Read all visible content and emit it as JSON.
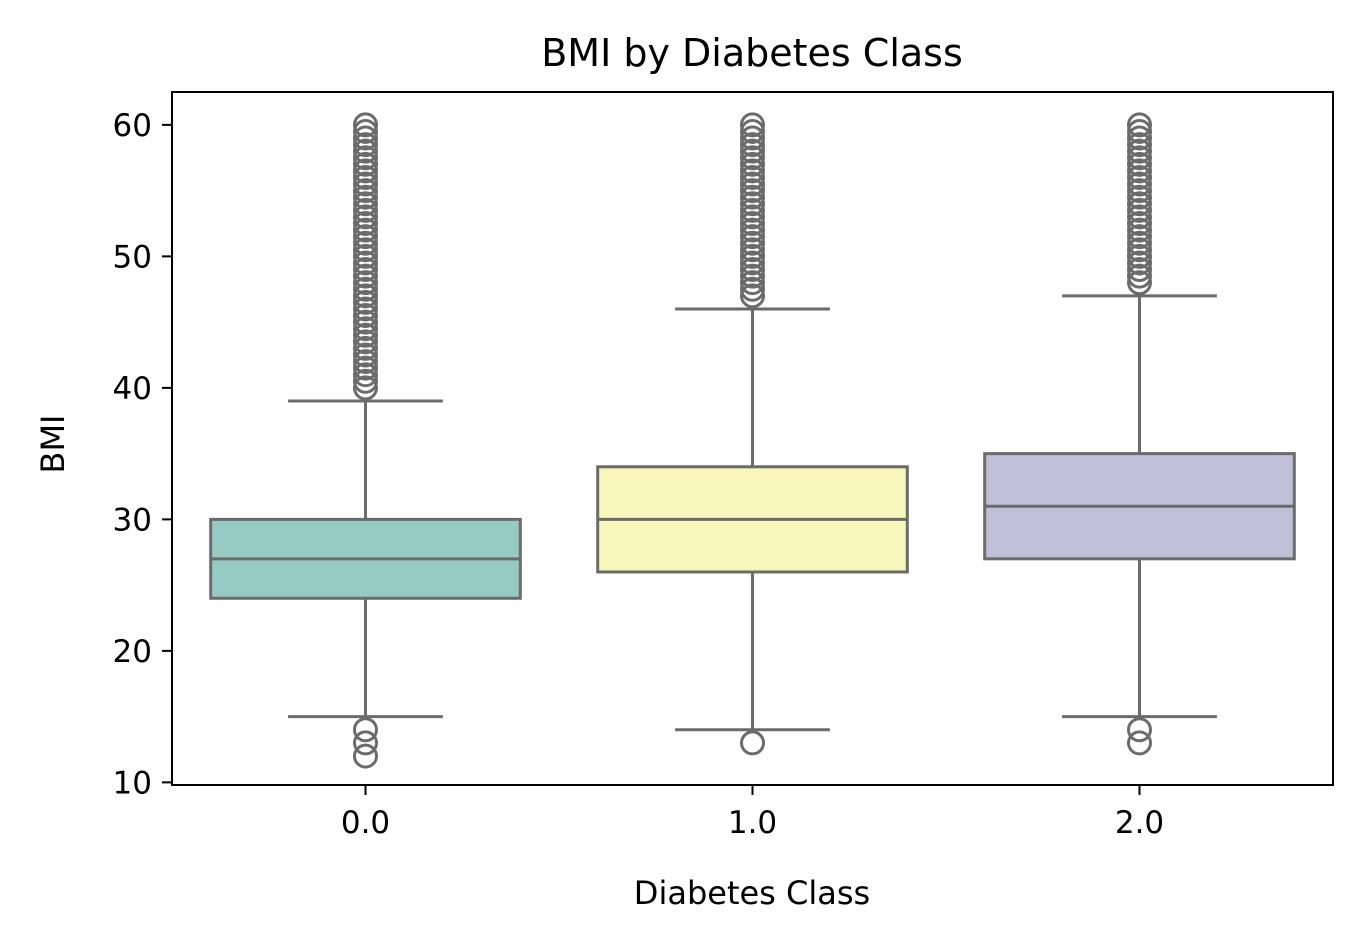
{
  "chart_data": {
    "type": "box",
    "title": "BMI by Diabetes Class",
    "xlabel": "Diabetes Class",
    "ylabel": "BMI",
    "categories": [
      "0.0",
      "1.0",
      "2.0"
    ],
    "ylim": [
      9.8,
      62.5
    ],
    "yticks": [
      10,
      20,
      30,
      40,
      50,
      60
    ],
    "grid": false,
    "legend": "none",
    "line_color": "#6b6b6b",
    "boxes": [
      {
        "category": "0.0",
        "color": "#96cbc3",
        "whisker_low": 15,
        "q1": 24,
        "median": 27,
        "q3": 30,
        "whisker_high": 39,
        "outliers": [
          12,
          13,
          14,
          40,
          40.5,
          41,
          41.5,
          42,
          42.5,
          43,
          43.5,
          44,
          44.5,
          45,
          45.5,
          46,
          46.5,
          47,
          47.5,
          48,
          48.5,
          49,
          49.5,
          50,
          50.5,
          51,
          51.5,
          52,
          52.5,
          53,
          53.5,
          54,
          54.5,
          55,
          55.5,
          56,
          56.5,
          57,
          57.5,
          58,
          58.5,
          59,
          59.5,
          60
        ]
      },
      {
        "category": "1.0",
        "color": "#f7f7bb",
        "whisker_low": 14,
        "q1": 26,
        "median": 30,
        "q3": 34,
        "whisker_high": 46,
        "outliers": [
          13,
          47,
          47.5,
          48,
          48.5,
          49,
          49.5,
          50,
          50.5,
          51,
          51.5,
          52,
          52.5,
          53,
          53.5,
          54,
          54.5,
          55,
          55.5,
          56,
          56.5,
          57,
          57.5,
          58,
          58.5,
          59,
          59.5,
          60
        ]
      },
      {
        "category": "2.0",
        "color": "#c1bed7",
        "whisker_low": 15,
        "q1": 27,
        "median": 31,
        "q3": 35,
        "whisker_high": 47,
        "outliers": [
          13,
          14,
          48,
          48.5,
          49,
          49.5,
          50,
          50.5,
          51,
          51.5,
          52,
          52.5,
          53,
          53.5,
          54,
          54.5,
          55,
          55.5,
          56,
          56.5,
          57,
          57.5,
          58,
          58.5,
          59,
          59.5,
          60
        ]
      }
    ]
  }
}
